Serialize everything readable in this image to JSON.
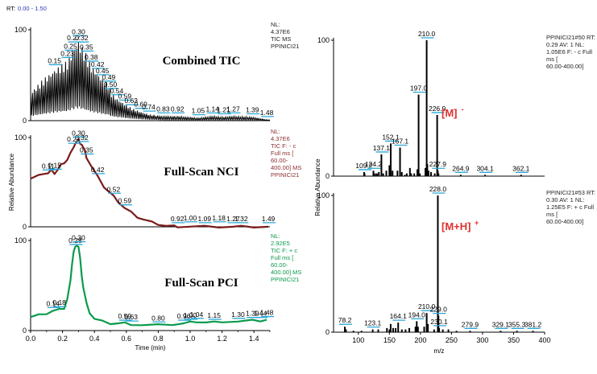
{
  "rt_range": {
    "prefix": "RT:",
    "value": "0.00 - 1.50"
  },
  "colors": {
    "tic": "#000000",
    "nci": "#7a1a1a",
    "pci": "#0a9a4c",
    "label": "#2aa8d8",
    "ion": "#e03030",
    "axis": "#000000",
    "note_nci": "#8b2d2d",
    "note_pci": "#0a9a4c"
  },
  "chart_data": [
    {
      "type": "line",
      "title": "Combined TIC",
      "ylim": [
        0,
        100
      ],
      "yticks": [
        "0",
        "100"
      ],
      "xlim": [
        0,
        1.5
      ],
      "note": [
        "NL:",
        "4.37E6",
        "TIC  MS",
        "PPINICI21"
      ],
      "peak_labels": [
        {
          "x": 0.15,
          "y": 58,
          "label": "0.15"
        },
        {
          "x": 0.23,
          "y": 66,
          "label": "0.23"
        },
        {
          "x": 0.25,
          "y": 74,
          "label": "0.25"
        },
        {
          "x": 0.27,
          "y": 83,
          "label": "0.27"
        },
        {
          "x": 0.3,
          "y": 90,
          "label": "0.30"
        },
        {
          "x": 0.32,
          "y": 83,
          "label": "0.32"
        },
        {
          "x": 0.35,
          "y": 73,
          "label": "0.35"
        },
        {
          "x": 0.38,
          "y": 62,
          "label": "0.38"
        },
        {
          "x": 0.42,
          "y": 54,
          "label": "0.42"
        },
        {
          "x": 0.45,
          "y": 47,
          "label": "0.45"
        },
        {
          "x": 0.49,
          "y": 40,
          "label": "0.49"
        },
        {
          "x": 0.5,
          "y": 32,
          "label": "0.50"
        },
        {
          "x": 0.54,
          "y": 25,
          "label": "0.54"
        },
        {
          "x": 0.59,
          "y": 19,
          "label": "0.59"
        },
        {
          "x": 0.63,
          "y": 14,
          "label": "0.63"
        },
        {
          "x": 0.69,
          "y": 10,
          "label": "0.69"
        },
        {
          "x": 0.74,
          "y": 7,
          "label": "0.74"
        },
        {
          "x": 0.83,
          "y": 5,
          "label": "0.83"
        },
        {
          "x": 0.92,
          "y": 5,
          "label": "0.92"
        },
        {
          "x": 1.05,
          "y": 3,
          "label": "1.05"
        },
        {
          "x": 1.14,
          "y": 5,
          "label": "1.14"
        },
        {
          "x": 1.21,
          "y": 4,
          "label": "1.21"
        },
        {
          "x": 1.27,
          "y": 5,
          "label": "1.27"
        },
        {
          "x": 1.39,
          "y": 4,
          "label": "1.39"
        },
        {
          "x": 1.48,
          "y": 1,
          "label": "1.48"
        }
      ]
    },
    {
      "type": "line",
      "title": "Full-Scan NCI",
      "ylim": [
        0,
        100
      ],
      "yticks": [
        "0",
        "100"
      ],
      "xlim": [
        0,
        1.5
      ],
      "ylabel": "Relative Abundance",
      "note": [
        "NL:",
        "4.37E6",
        "TIC F: - c",
        "Full ms [",
        "60.00-",
        "400.00]  MS",
        "PPINICI21"
      ],
      "series": [
        {
          "x": [
            0.0,
            0.05,
            0.08,
            0.11,
            0.13,
            0.15,
            0.17,
            0.19,
            0.21,
            0.23,
            0.25,
            0.27,
            0.28,
            0.3,
            0.31,
            0.32,
            0.34,
            0.35,
            0.38,
            0.42,
            0.46,
            0.5,
            0.52,
            0.55,
            0.59,
            0.63,
            0.67,
            0.71,
            0.76,
            0.8,
            0.85,
            0.9,
            0.92,
            1.0,
            1.09,
            1.18,
            1.27,
            1.32,
            1.4,
            1.49
          ],
          "y": [
            54,
            57,
            60,
            60,
            63,
            60,
            64,
            69,
            72,
            75,
            82,
            90,
            93,
            97,
            94,
            92,
            85,
            78,
            68,
            56,
            45,
            38,
            34,
            28,
            21,
            16,
            11,
            8,
            5,
            3,
            1,
            0.5,
            0.3,
            0.2,
            0.1,
            0.1,
            0.1,
            0.1,
            0.1,
            0.1
          ]
        }
      ],
      "peak_labels": [
        {
          "x": 0.11,
          "y": 60,
          "label": "0.11"
        },
        {
          "x": 0.15,
          "y": 61,
          "label": "0.15"
        },
        {
          "x": 0.27,
          "y": 90,
          "label": "0.27"
        },
        {
          "x": 0.3,
          "y": 97,
          "label": "0.30"
        },
        {
          "x": 0.32,
          "y": 92,
          "label": "0.32"
        },
        {
          "x": 0.35,
          "y": 78,
          "label": "0.35"
        },
        {
          "x": 0.42,
          "y": 56,
          "label": "0.42"
        },
        {
          "x": 0.52,
          "y": 34,
          "label": "0.52"
        },
        {
          "x": 0.59,
          "y": 21,
          "label": "0.59"
        },
        {
          "x": 0.92,
          "y": 1,
          "label": "0.92"
        },
        {
          "x": 1.0,
          "y": 2,
          "label": "1.00"
        },
        {
          "x": 1.09,
          "y": 1,
          "label": "1.09"
        },
        {
          "x": 1.18,
          "y": 2,
          "label": "1.18"
        },
        {
          "x": 1.27,
          "y": 1,
          "label": "1.27"
        },
        {
          "x": 1.32,
          "y": 1,
          "label": "1.32"
        },
        {
          "x": 1.49,
          "y": 1,
          "label": "1.49"
        }
      ]
    },
    {
      "type": "line",
      "title": "Full-Scan PCI",
      "ylim": [
        0,
        100
      ],
      "yticks": [
        "0",
        "100"
      ],
      "xlim": [
        0,
        1.5
      ],
      "xticks": [
        "0.0",
        "0.2",
        "0.4",
        "0.6",
        "0.8",
        "1.0",
        "1.2",
        "1.4"
      ],
      "xlabel": "Time (min)",
      "note": [
        "NL:",
        "2.92E5",
        "TIC F: + c",
        "Full ms [",
        "60.00-",
        "400.00]  MS",
        "PPINICI21"
      ],
      "series": [
        {
          "x": [
            0.0,
            0.05,
            0.1,
            0.14,
            0.18,
            0.21,
            0.23,
            0.25,
            0.26,
            0.27,
            0.28,
            0.29,
            0.3,
            0.31,
            0.32,
            0.33,
            0.35,
            0.37,
            0.4,
            0.45,
            0.5,
            0.55,
            0.59,
            0.63,
            0.7,
            0.8,
            0.89,
            0.96,
            1.0,
            1.04,
            1.1,
            1.15,
            1.2,
            1.3,
            1.39,
            1.44,
            1.48
          ],
          "y": [
            15,
            17,
            19,
            22,
            23,
            25,
            35,
            55,
            75,
            88,
            92,
            95,
            93,
            80,
            62,
            48,
            30,
            20,
            13,
            10,
            8,
            8,
            8,
            7,
            6,
            6,
            7,
            8,
            9,
            10,
            9,
            9,
            10,
            10,
            11,
            11,
            12
          ]
        }
      ],
      "peak_labels": [
        {
          "x": 0.14,
          "y": 22,
          "label": "0.14"
        },
        {
          "x": 0.18,
          "y": 23,
          "label": "0.18"
        },
        {
          "x": 0.28,
          "y": 92,
          "label": "0.28"
        },
        {
          "x": 0.3,
          "y": 95,
          "label": "0.30"
        },
        {
          "x": 0.59,
          "y": 8,
          "label": "0.59"
        },
        {
          "x": 0.63,
          "y": 7,
          "label": "0.63"
        },
        {
          "x": 0.8,
          "y": 6,
          "label": "0.80"
        },
        {
          "x": 0.96,
          "y": 8,
          "label": "0.96"
        },
        {
          "x": 1.0,
          "y": 9,
          "label": "1.00"
        },
        {
          "x": 1.04,
          "y": 10,
          "label": "1.04"
        },
        {
          "x": 1.15,
          "y": 9,
          "label": "1.15"
        },
        {
          "x": 1.3,
          "y": 10,
          "label": "1.30"
        },
        {
          "x": 1.39,
          "y": 11,
          "label": "1.39"
        },
        {
          "x": 1.44,
          "y": 11,
          "label": "1.44"
        },
        {
          "x": 1.48,
          "y": 12,
          "label": "1.48"
        }
      ]
    },
    {
      "type": "bar",
      "ion": "[M]",
      "ion_sup": "-",
      "ylim": [
        0,
        100
      ],
      "yticks": [
        "0",
        "100"
      ],
      "xlim": [
        60,
        400
      ],
      "note": [
        "PPINICI21#50  RT:",
        "0.29  AV: 1 NL:",
        "1.05E6 F: - c Full",
        "ms [",
        "60.00-400.00]"
      ],
      "peaks": [
        {
          "mz": 109.2,
          "value": 3,
          "label": "109.2"
        },
        {
          "mz": 124.2,
          "value": 4,
          "label": "124.2"
        },
        {
          "mz": 137.1,
          "value": 16,
          "label": "137.1"
        },
        {
          "mz": 152.1,
          "value": 24,
          "label": "152.1"
        },
        {
          "mz": 167.1,
          "value": 21,
          "label": "167.1"
        },
        {
          "mz": 197.0,
          "value": 60,
          "label": "197.0"
        },
        {
          "mz": 210.0,
          "value": 100,
          "label": "210.0"
        },
        {
          "mz": 226.9,
          "value": 45,
          "label": "226.9"
        },
        {
          "mz": 227.9,
          "value": 4,
          "label": "227.9"
        },
        {
          "mz": 264.9,
          "value": 1,
          "label": "264.9"
        },
        {
          "mz": 304.1,
          "value": 1,
          "label": "304.1"
        },
        {
          "mz": 362.1,
          "value": 1,
          "label": "362.1"
        }
      ],
      "minor_peaks": [
        {
          "mz": 110,
          "value": 2
        },
        {
          "mz": 127,
          "value": 2
        },
        {
          "mz": 130,
          "value": 2
        },
        {
          "mz": 133,
          "value": 3
        },
        {
          "mz": 140,
          "value": 2
        },
        {
          "mz": 145,
          "value": 4
        },
        {
          "mz": 150,
          "value": 8
        },
        {
          "mz": 155,
          "value": 4
        },
        {
          "mz": 163,
          "value": 4
        },
        {
          "mz": 170,
          "value": 3
        },
        {
          "mz": 175,
          "value": 1
        },
        {
          "mz": 178,
          "value": 2
        },
        {
          "mz": 183,
          "value": 6
        },
        {
          "mz": 185,
          "value": 2
        },
        {
          "mz": 190,
          "value": 2
        },
        {
          "mz": 195,
          "value": 5
        },
        {
          "mz": 199,
          "value": 2
        },
        {
          "mz": 208,
          "value": 6
        },
        {
          "mz": 211,
          "value": 9
        },
        {
          "mz": 213,
          "value": 4
        },
        {
          "mz": 217,
          "value": 3
        },
        {
          "mz": 223,
          "value": 2
        },
        {
          "mz": 229,
          "value": 2
        }
      ]
    },
    {
      "type": "bar",
      "ion": "[M+H]",
      "ion_sup": "+",
      "ylim": [
        0,
        100
      ],
      "yticks": [
        "0",
        "100"
      ],
      "xlim": [
        60,
        400
      ],
      "xticks": [
        "100",
        "150",
        "200",
        "250",
        "300",
        "350",
        "400"
      ],
      "xlabel": "m/z",
      "ylabel": "Relative Abundance",
      "note": [
        "PPINICI21#53  RT:",
        "0.30  AV: 1 NL:",
        "1.25E5 F: + c Full",
        "ms [",
        "60.00-400.00]"
      ],
      "peaks": [
        {
          "mz": 78.2,
          "value": 4,
          "label": "78.2"
        },
        {
          "mz": 123.1,
          "value": 2,
          "label": "123.1"
        },
        {
          "mz": 164.1,
          "value": 7,
          "label": "164.1"
        },
        {
          "mz": 194.0,
          "value": 8,
          "label": "194.0"
        },
        {
          "mz": 210.0,
          "value": 14,
          "label": "210.0"
        },
        {
          "mz": 228.0,
          "value": 100,
          "label": "228.0"
        },
        {
          "mz": 229.0,
          "value": 12,
          "label": "229.0"
        },
        {
          "mz": 230.1,
          "value": 3,
          "label": "230.1"
        },
        {
          "mz": 279.9,
          "value": 1,
          "label": "279.9"
        },
        {
          "mz": 329.1,
          "value": 1,
          "label": "329.1"
        },
        {
          "mz": 355.3,
          "value": 1,
          "label": "355.3"
        },
        {
          "mz": 381.2,
          "value": 1,
          "label": "381.2"
        }
      ],
      "minor_peaks": [
        {
          "mz": 80,
          "value": 2
        },
        {
          "mz": 92,
          "value": 1
        },
        {
          "mz": 105,
          "value": 1
        },
        {
          "mz": 132,
          "value": 2
        },
        {
          "mz": 146,
          "value": 3
        },
        {
          "mz": 150,
          "value": 2
        },
        {
          "mz": 152,
          "value": 6
        },
        {
          "mz": 156,
          "value": 3
        },
        {
          "mz": 160,
          "value": 3
        },
        {
          "mz": 170,
          "value": 2
        },
        {
          "mz": 176,
          "value": 2
        },
        {
          "mz": 182,
          "value": 3
        },
        {
          "mz": 192,
          "value": 4
        },
        {
          "mz": 196,
          "value": 4
        },
        {
          "mz": 206,
          "value": 4
        },
        {
          "mz": 212,
          "value": 6
        },
        {
          "mz": 222,
          "value": 2
        },
        {
          "mz": 236,
          "value": 2
        },
        {
          "mz": 245,
          "value": 2
        },
        {
          "mz": 258,
          "value": 1
        }
      ]
    }
  ]
}
